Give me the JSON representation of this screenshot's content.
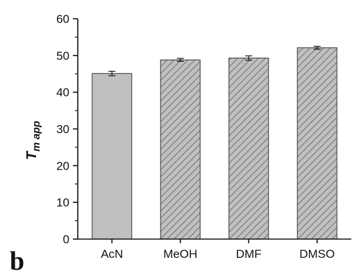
{
  "panel_label": "b",
  "chart_data": {
    "type": "bar",
    "title": "",
    "xlabel": "",
    "ylabel": "T",
    "ylabel_sub": "m app",
    "categories": [
      "AcN",
      "MeOH",
      "DMF",
      "DMSO"
    ],
    "values": [
      45.1,
      48.8,
      49.3,
      52.1
    ],
    "errors": [
      0.6,
      0.4,
      0.6,
      0.4
    ],
    "bar_fills": [
      "solid",
      "hatched",
      "hatched",
      "hatched"
    ],
    "ylim": [
      0,
      60
    ],
    "yticks": [
      0,
      10,
      20,
      30,
      40,
      50,
      60
    ],
    "grid": false,
    "legend": "none",
    "colors": {
      "bar": "#c0c0c0",
      "hatch": "#5a5a5a",
      "edge": "#333333",
      "axis": "#111111"
    }
  }
}
